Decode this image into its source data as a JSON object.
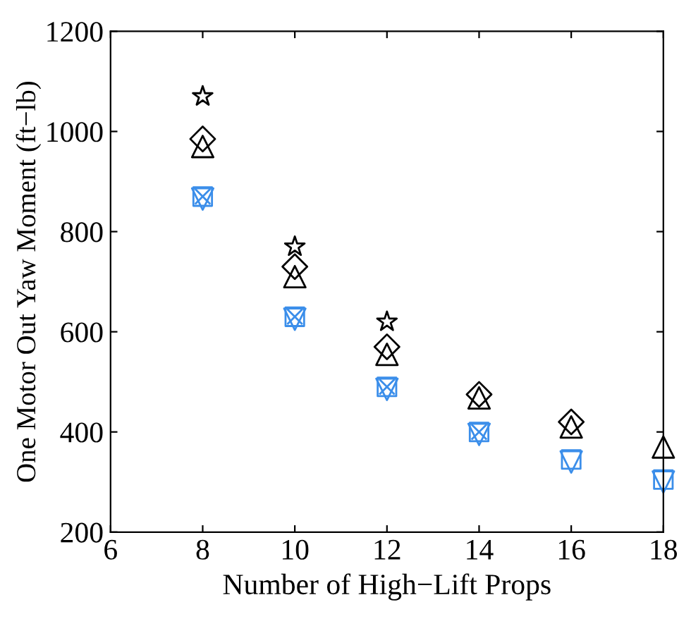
{
  "chart_data": {
    "type": "scatter",
    "xlabel": "Number of High−Lift Props",
    "ylabel": "One Motor Out Yaw Moment (ft−lb)",
    "xlim": [
      6,
      18
    ],
    "xticks": [
      6,
      8,
      10,
      12,
      14,
      16,
      18
    ],
    "ylim": [
      200,
      1200
    ],
    "yticks": [
      200,
      400,
      600,
      800,
      1000,
      1200
    ],
    "grid": false,
    "legend": false,
    "series": [
      {
        "marker": "star",
        "color": "#000000",
        "x": [
          8,
          10,
          12
        ],
        "values": [
          1070,
          770,
          620
        ]
      },
      {
        "marker": "diamond",
        "color": "#000000",
        "x": [
          8,
          10,
          12,
          14,
          16
        ],
        "values": [
          985,
          730,
          570,
          475,
          420
        ]
      },
      {
        "marker": "triangle",
        "color": "#000000",
        "x": [
          8,
          10,
          12,
          14,
          16,
          18
        ],
        "values": [
          970,
          710,
          555,
          468,
          410,
          370
        ]
      },
      {
        "marker": "triangle_down",
        "color": "#3b8eea",
        "x": [
          8,
          10,
          12,
          14,
          16,
          18
        ],
        "values": [
          865,
          625,
          485,
          395,
          340,
          300
        ]
      },
      {
        "marker": "square",
        "color": "#3b8eea",
        "x": [
          8,
          10,
          12,
          14,
          16,
          18
        ],
        "values": [
          870,
          630,
          490,
          400,
          345,
          305
        ]
      },
      {
        "marker": "cross",
        "color": "#3b8eea",
        "x": [
          8,
          10,
          12,
          14
        ],
        "values": [
          870,
          630,
          490,
          400
        ]
      }
    ]
  }
}
